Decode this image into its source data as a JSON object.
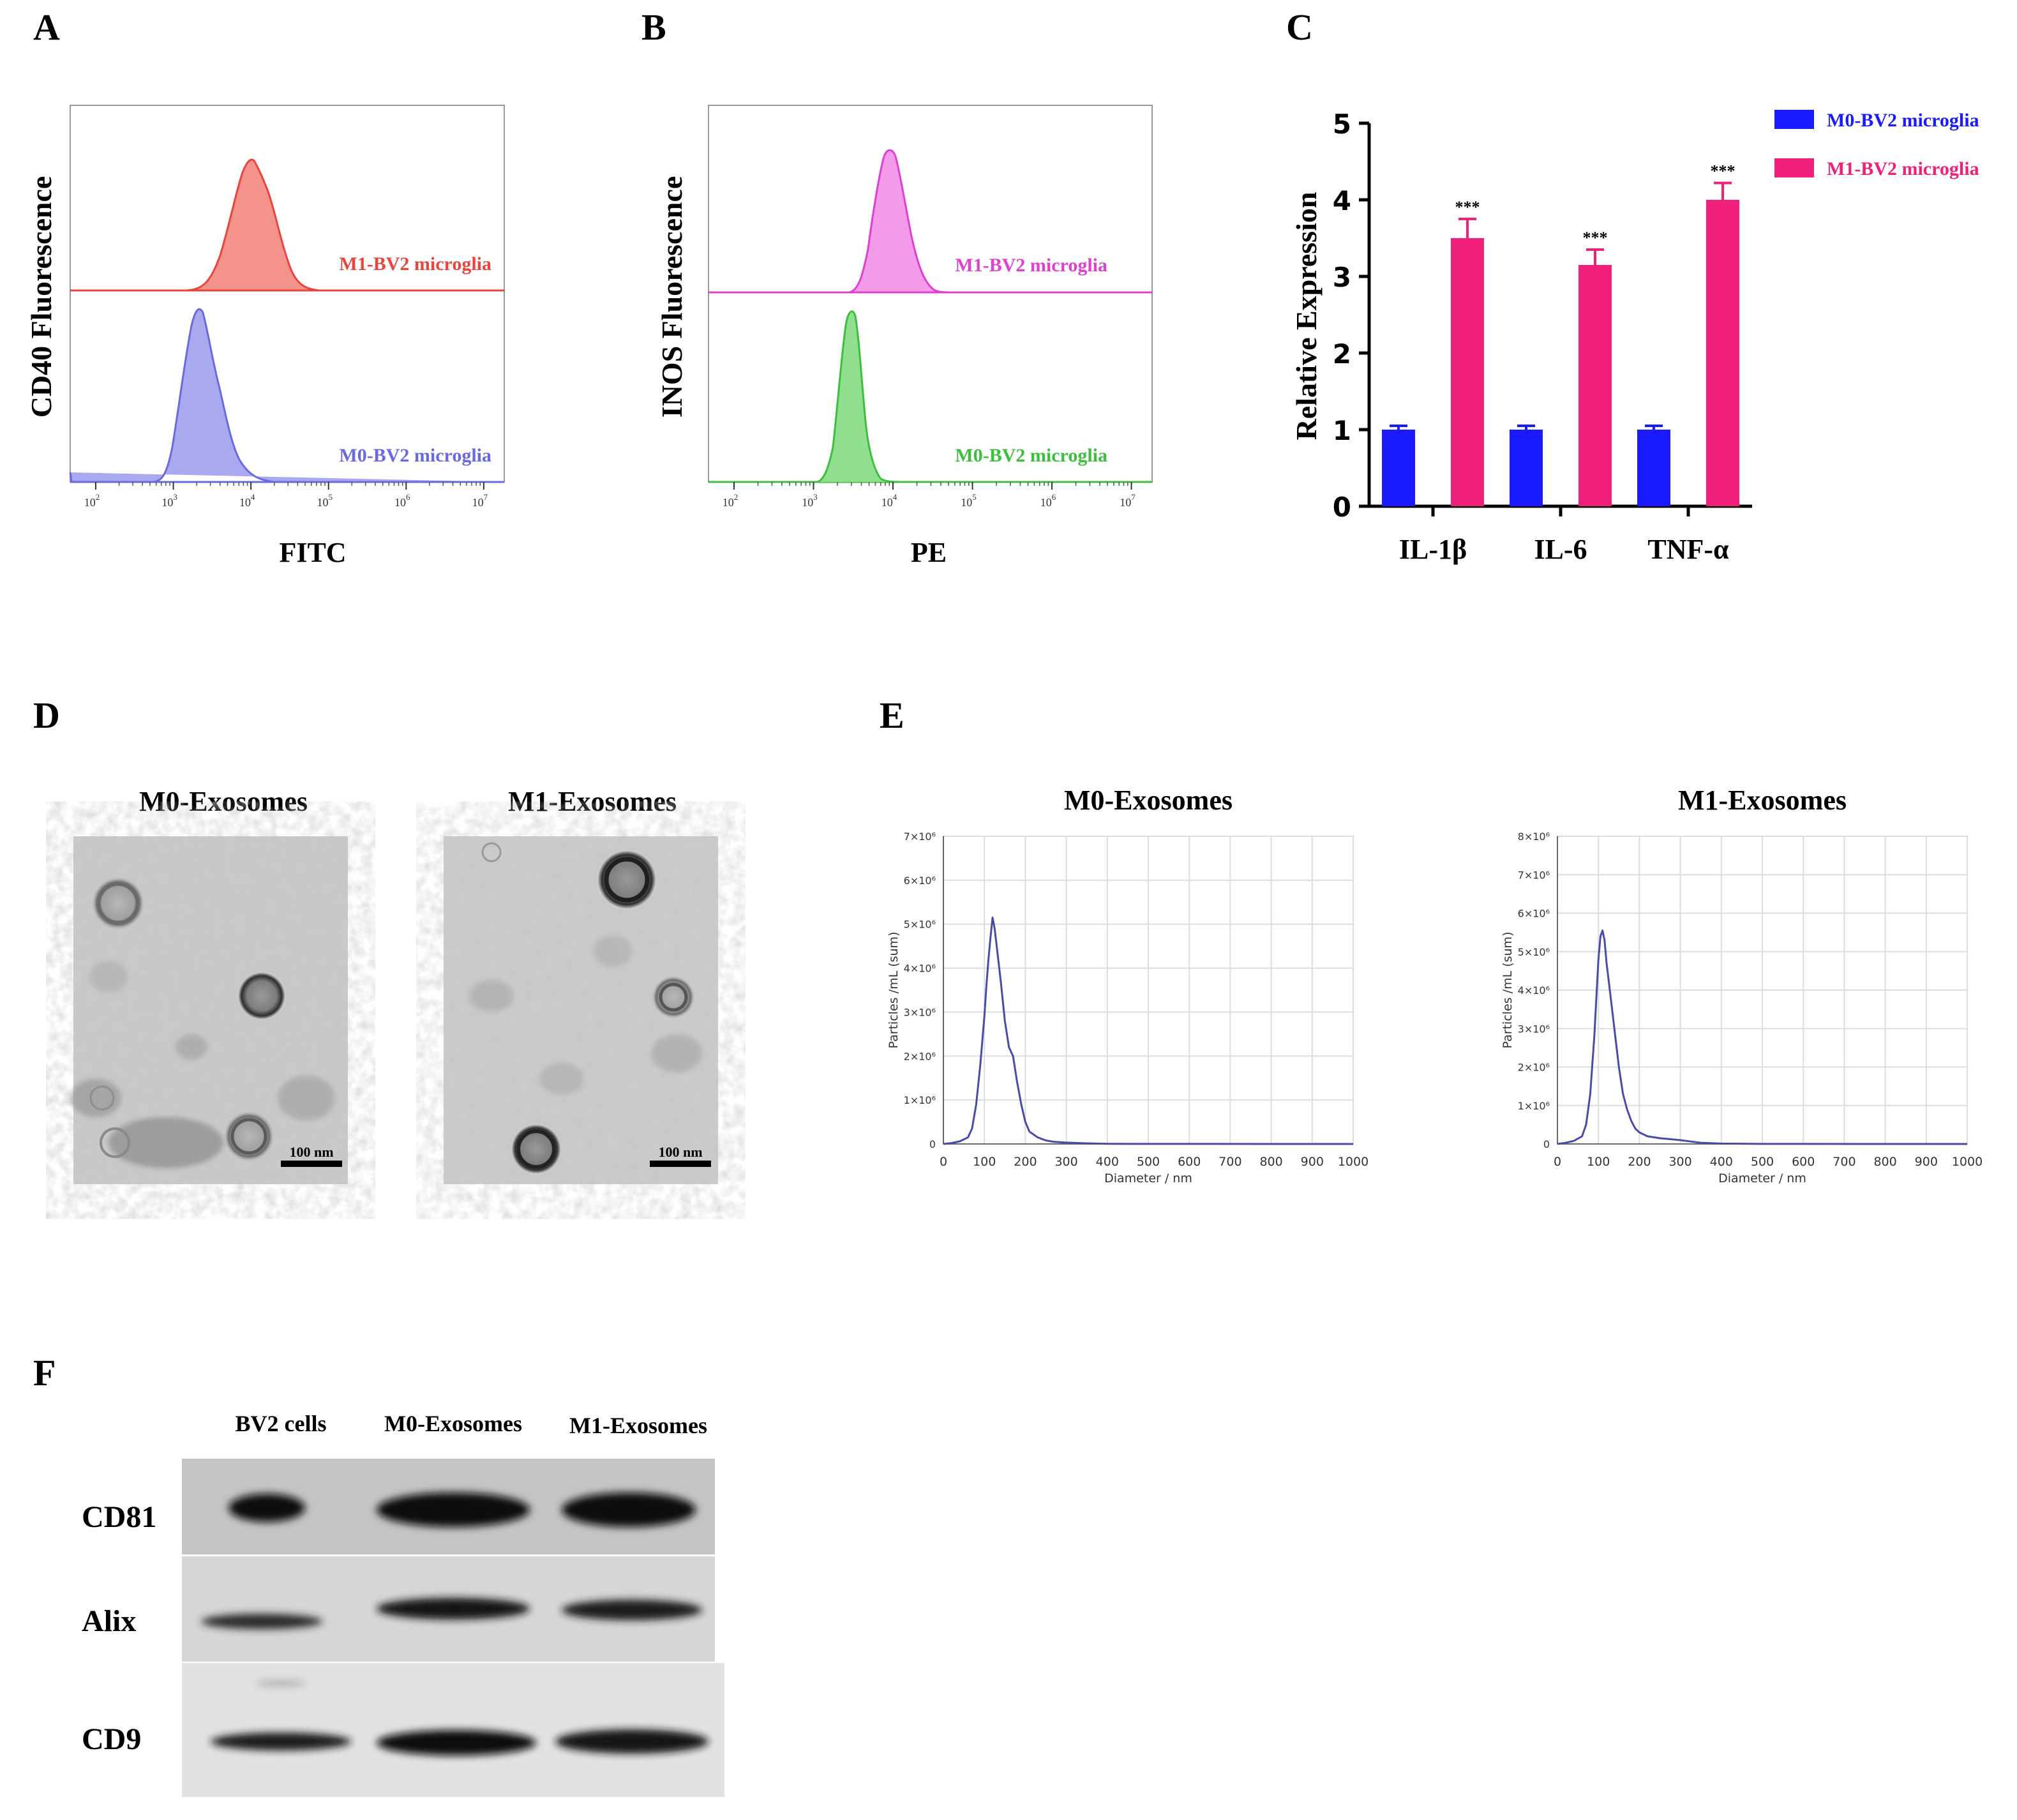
{
  "panels": {
    "A": {
      "letter": "A",
      "ylabel": "CD40 Fluorescence",
      "xlabel": "FITC",
      "top_label": "M1-BV2 microglia",
      "bottom_label": "M0-BV2 microglia",
      "colors": {
        "top": "#e8463c",
        "top_fill": "#f4938b",
        "bottom": "#6a6ae0",
        "bottom_fill": "#a9a9f0"
      },
      "tick_exponents": [
        "2",
        "3",
        "4",
        "5",
        "6",
        "7"
      ]
    },
    "B": {
      "letter": "B",
      "ylabel": "INOS Fluorescence",
      "xlabel": "PE",
      "top_label": "M1-BV2 microglia",
      "bottom_label": "M0-BV2 microglia",
      "colors": {
        "top": "#e040d0",
        "top_fill": "#f39be9",
        "bottom": "#3cbf3c",
        "bottom_fill": "#8fdf8f"
      },
      "tick_exponents": [
        "2",
        "3",
        "4",
        "5",
        "6",
        "7"
      ]
    },
    "C": {
      "letter": "C",
      "chart_data": {
        "type": "bar",
        "categories": [
          "IL-1β",
          "IL-6",
          "TNF-α"
        ],
        "series": [
          {
            "name": "M0-BV2 microglia",
            "color": "#1a1aff",
            "values": [
              1.0,
              1.0,
              1.0
            ],
            "errors": [
              0.05,
              0.05,
              0.05
            ]
          },
          {
            "name": "M1-BV2 microglia",
            "color": "#f0207a",
            "values": [
              3.5,
              3.15,
              4.0
            ],
            "errors": [
              0.25,
              0.2,
              0.22
            ]
          }
        ],
        "significance": [
          "***",
          "***",
          "***"
        ],
        "ylabel": "Relative Expression",
        "ylim": [
          0,
          5
        ],
        "yticks": [
          "0",
          "1",
          "2",
          "3",
          "4",
          "5"
        ],
        "legend": "top-right"
      }
    },
    "D": {
      "letter": "D",
      "left_title": "M0-Exosomes",
      "right_title": "M1-Exosomes",
      "scale_bar": "100 nm"
    },
    "E": {
      "letter": "E",
      "charts": [
        {
          "title": "M0-Exosomes",
          "chart_data": {
            "type": "line",
            "xlabel": "Diameter / nm",
            "ylabel": "Particles /mL (sum)",
            "xlim": [
              0,
              1000
            ],
            "ylim": [
              0,
              7000000
            ],
            "xticks": [
              "0",
              "100",
              "200",
              "300",
              "400",
              "500",
              "600",
              "700",
              "800",
              "900",
              "1000"
            ],
            "yticks": [
              "0",
              "1×10⁶",
              "2×10⁶",
              "3×10⁶",
              "4×10⁶",
              "5×10⁶",
              "6×10⁶",
              "7×10⁶"
            ],
            "color": "#4a4aa8",
            "x": [
              0,
              20,
              40,
              60,
              70,
              80,
              90,
              100,
              105,
              110,
              115,
              120,
              125,
              130,
              140,
              150,
              160,
              170,
              180,
              190,
              200,
              210,
              230,
              250,
              270,
              300,
              350,
              400,
              500,
              600,
              800,
              1000
            ],
            "y": [
              0,
              20000,
              60000,
              150000,
              350000,
              900000,
              1800000,
              2900000,
              3600000,
              4200000,
              4700000,
              5150000,
              4900000,
              4500000,
              3700000,
              2800000,
              2200000,
              2000000,
              1400000,
              900000,
              500000,
              280000,
              150000,
              80000,
              50000,
              30000,
              15000,
              5000,
              2000,
              1000,
              0,
              0
            ]
          }
        },
        {
          "title": "M1-Exosomes",
          "chart_data": {
            "type": "line",
            "xlabel": "Diameter / nm",
            "ylabel": "Particles /mL (sum)",
            "xlim": [
              0,
              1000
            ],
            "ylim": [
              0,
              8000000
            ],
            "xticks": [
              "0",
              "100",
              "200",
              "300",
              "400",
              "500",
              "600",
              "700",
              "800",
              "900",
              "1000"
            ],
            "yticks": [
              "0",
              "1×10⁶",
              "2×10⁶",
              "3×10⁶",
              "4×10⁶",
              "5×10⁶",
              "6×10⁶",
              "7×10⁶",
              "8×10⁶"
            ],
            "color": "#4a4aa8",
            "x": [
              0,
              20,
              40,
              60,
              70,
              80,
              90,
              95,
              100,
              105,
              110,
              115,
              120,
              130,
              140,
              150,
              160,
              170,
              180,
              190,
              200,
              220,
              250,
              280,
              300,
              350,
              400,
              500,
              600,
              800,
              1000
            ],
            "y": [
              0,
              30000,
              80000,
              200000,
              500000,
              1300000,
              2800000,
              3800000,
              4800000,
              5400000,
              5550000,
              5300000,
              4700000,
              3800000,
              2900000,
              2000000,
              1300000,
              900000,
              600000,
              400000,
              300000,
              200000,
              150000,
              120000,
              100000,
              30000,
              10000,
              2000,
              1000,
              0,
              0
            ]
          }
        }
      ]
    },
    "F": {
      "letter": "F",
      "lanes": [
        "BV2 cells",
        "M0-Exosomes",
        "M1-Exosomes"
      ],
      "rows": [
        "CD81",
        "Alix",
        "CD9"
      ]
    }
  }
}
